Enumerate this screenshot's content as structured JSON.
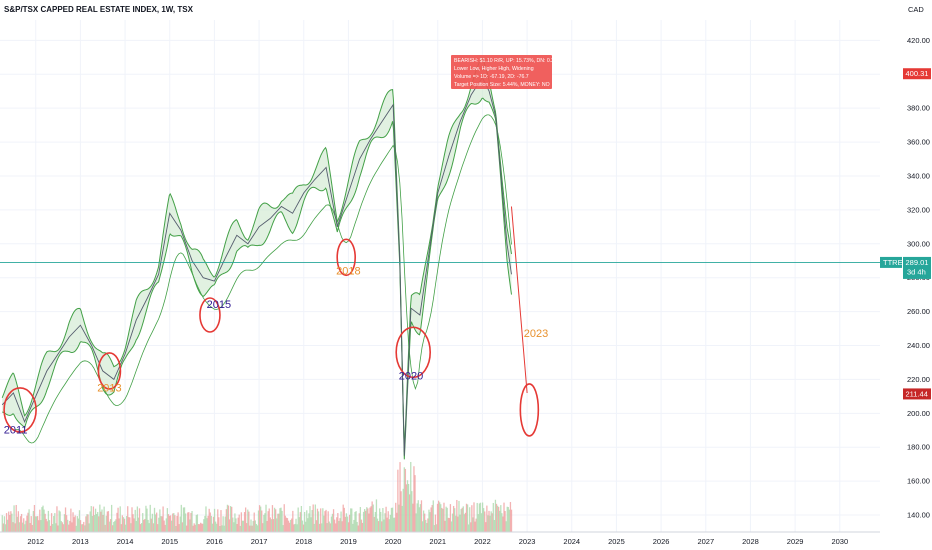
{
  "header": {
    "title": "S&P/TSX CAPPED REAL ESTATE INDEX, 1W, TSX",
    "currency": "CAD"
  },
  "colors": {
    "up": "#43a047",
    "down": "#e53935",
    "upFill": "#c8e6c9",
    "downFill": "#f8c9c9",
    "accent": "#26a69a",
    "ann_blue": "#311b92",
    "ann_orange": "#e8912e",
    "ann_red": "#e53935",
    "vol_up": "#a5d6a7",
    "vol_down": "#ef9a9a"
  },
  "chart_data": {
    "type": "line",
    "title": "S&P/TSX CAPPED REAL ESTATE INDEX, 1W, TSX",
    "x_ticks": [
      "2012",
      "2013",
      "2014",
      "2015",
      "2016",
      "2017",
      "2018",
      "2019",
      "2020",
      "2021",
      "2022",
      "2023",
      "2024",
      "2025",
      "2026",
      "2027",
      "2028",
      "2029",
      "2030"
    ],
    "y_ticks": [
      "140.00",
      "160.00",
      "180.00",
      "200.00",
      "220.00",
      "240.00",
      "260.00",
      "280.00",
      "300.00",
      "320.00",
      "340.00",
      "360.00",
      "380.00",
      "400.00",
      "420.00"
    ],
    "ylim": [
      130,
      432
    ],
    "xlim": [
      2011.2,
      2030.9
    ],
    "series": [
      {
        "x": [
          2011.25,
          2011.5,
          2011.75,
          2012.0,
          2012.25,
          2012.5,
          2012.75,
          2013.0,
          2013.25,
          2013.5,
          2013.75,
          2014.0,
          2014.25,
          2014.5,
          2014.75,
          2015.0,
          2015.25,
          2015.5,
          2015.75,
          2016.0,
          2016.25,
          2016.5,
          2016.75,
          2017.0,
          2017.25,
          2017.5,
          2017.75,
          2018.0,
          2018.25,
          2018.5,
          2018.75,
          2019.0,
          2019.25,
          2019.5,
          2019.75,
          2020.0,
          2020.15,
          2020.25,
          2020.4,
          2020.6,
          2020.75,
          2021.0,
          2021.25,
          2021.5,
          2021.75,
          2022.0,
          2022.15,
          2022.3,
          2022.45,
          2022.55,
          2022.65
        ],
        "values": [
          205,
          212,
          195,
          210,
          225,
          235,
          245,
          252,
          240,
          225,
          220,
          235,
          255,
          268,
          282,
          318,
          308,
          290,
          280,
          278,
          292,
          305,
          300,
          310,
          315,
          322,
          318,
          330,
          338,
          345,
          310,
          330,
          350,
          362,
          372,
          382,
          290,
          175,
          262,
          258,
          285,
          330,
          352,
          372,
          388,
          398,
          390,
          375,
          330,
          300,
          282
        ]
      }
    ],
    "price_label": "289.01",
    "price_value": 289.01,
    "countdown": "3d 4h",
    "top_marker": "400.31",
    "top_marker_value": 400.31,
    "bottom_marker": "211.44",
    "bottom_marker_value": 211.44,
    "symbol": "TTRE",
    "info_box": [
      "BEARISH: $1.10 R/R, UP: 15.73%, DN: 0.26",
      "Lower Low, Higher High, Widening",
      "Volume => 1D: -67.19, 2D: -76.7",
      "Target Position Size: 5.44%, MONEY: NO"
    ],
    "annotations": [
      {
        "label": "2011",
        "x": 2011.55,
        "y": 188
      },
      {
        "label": "2013",
        "x": 2013.65,
        "y": 213
      },
      {
        "label": "2015",
        "x": 2016.1,
        "y": 262
      },
      {
        "label": "2018",
        "x": 2019.0,
        "y": 282
      },
      {
        "label": "2020",
        "x": 2020.4,
        "y": 220
      },
      {
        "label": "2023",
        "x": 2023.2,
        "y": 245
      }
    ]
  }
}
